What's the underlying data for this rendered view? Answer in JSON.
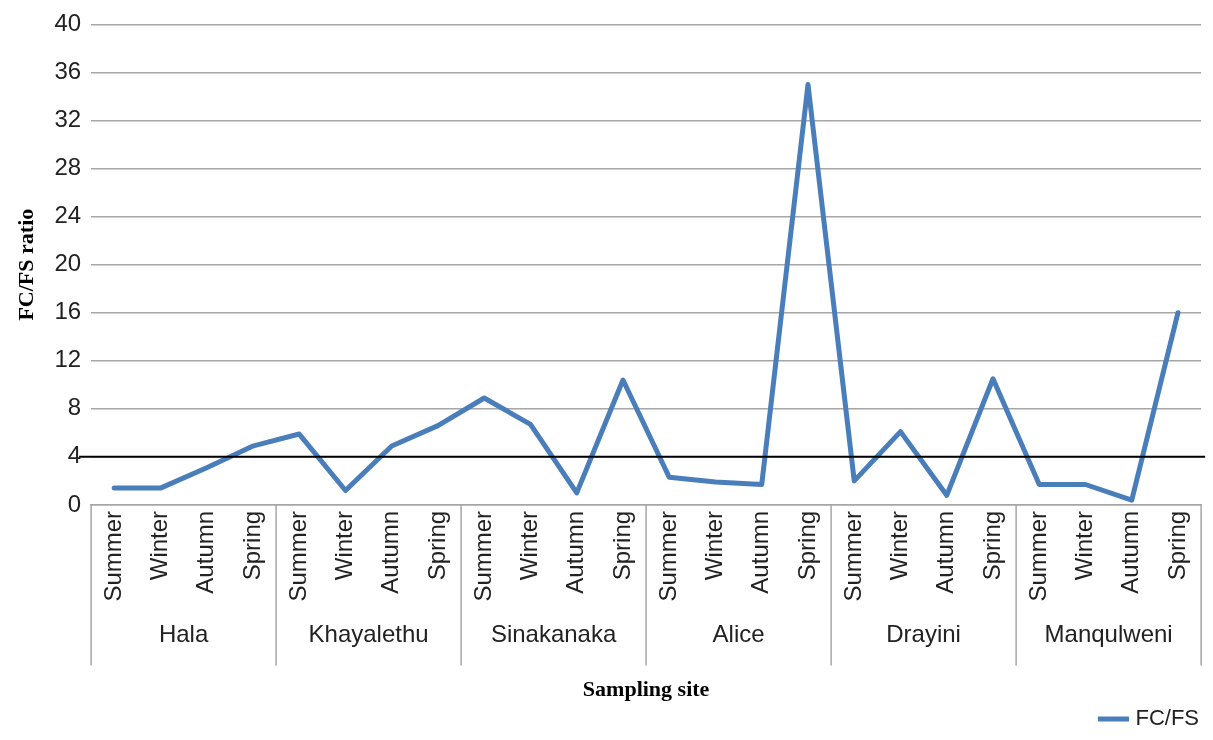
{
  "chart_data": {
    "type": "line",
    "xlabel": "Sampling site",
    "ylabel": "FC/FS ratio",
    "categories": [
      "Summer",
      "Winter",
      "Autumn",
      "Spring",
      "Summer",
      "Winter",
      "Autumn",
      "Spring",
      "Summer",
      "Winter",
      "Autumn",
      "Spring",
      "Summer",
      "Winter",
      "Autumn",
      "Spring",
      "Summer",
      "Winter",
      "Autumn",
      "Spring",
      "Summer",
      "Winter",
      "Autumn",
      "Spring"
    ],
    "series": [
      {
        "name": "FC/FS",
        "color": "#4a7ebb",
        "values": [
          1.4,
          1.4,
          3.1,
          4.9,
          5.9,
          1.2,
          4.9,
          6.6,
          8.9,
          6.7,
          1.0,
          10.4,
          2.3,
          1.9,
          1.7,
          35,
          2.0,
          6.1,
          0.8,
          10.5,
          1.7,
          1.7,
          0.4,
          16
        ]
      }
    ],
    "annotations": [
      "Hala",
      "Khayalethu",
      "Sinakanaka",
      "Alice",
      "Drayini",
      "Manqulweni"
    ],
    "ref_lines": [
      {
        "axis": "y",
        "value": 4,
        "color": "#000000"
      }
    ],
    "ylim": [
      0,
      40
    ],
    "yticks": [
      0,
      4,
      8,
      12,
      16,
      20,
      24,
      28,
      32,
      36,
      40
    ],
    "grid": "y",
    "legend": "bottom right",
    "marker": "none",
    "line_style": "solid"
  }
}
